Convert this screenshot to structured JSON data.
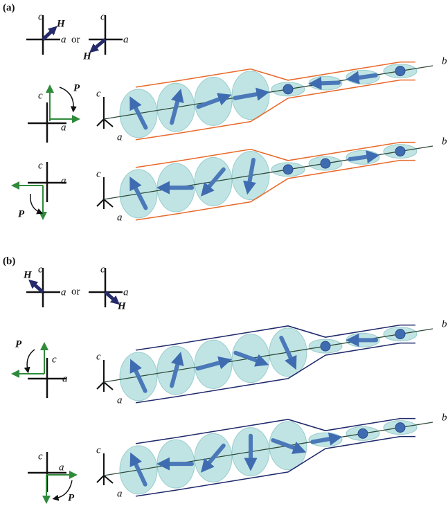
{
  "panels": [
    {
      "label": "(a)",
      "field": {
        "left": {
          "c": "c",
          "a": "a",
          "H": "H"
        },
        "connector": "or",
        "right": {
          "c": "c",
          "a": "a",
          "H": "H"
        }
      },
      "rows": [
        {
          "polarization": {
            "c": "c",
            "a": "a",
            "P": "P"
          },
          "spiral": {
            "c": "c",
            "a": "a",
            "b": "b"
          }
        },
        {
          "polarization": {
            "c": "c",
            "a": "a",
            "P": "P"
          },
          "spiral": {
            "c": "c",
            "a": "a",
            "b": "b"
          }
        }
      ]
    },
    {
      "label": "(b)",
      "field": {
        "left": {
          "c": "c",
          "a": "a",
          "H": "H"
        },
        "connector": "or",
        "right": {
          "c": "c",
          "a": "a",
          "H": "H"
        }
      },
      "rows": [
        {
          "polarization": {
            "c": "c",
            "a": "a",
            "P": "P"
          },
          "spiral": {
            "c": "c",
            "a": "a",
            "b": "b"
          }
        },
        {
          "polarization": {
            "c": "c",
            "a": "a",
            "P": "P"
          },
          "spiral": {
            "c": "c",
            "a": "a",
            "b": "b"
          }
        }
      ]
    }
  ]
}
